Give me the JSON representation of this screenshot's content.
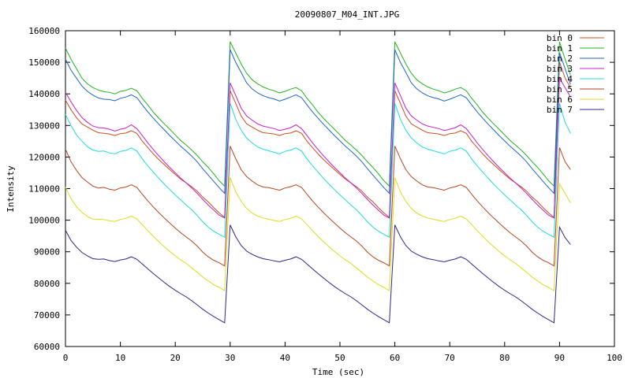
{
  "chart_data": {
    "type": "line",
    "title": "20090807_M04_INT.JPG",
    "xlabel": "Time (sec)",
    "ylabel": "Intensity",
    "xlim": [
      0,
      100
    ],
    "ylim": [
      60000,
      160000
    ],
    "xticks": [
      "0",
      "10",
      "20",
      "30",
      "40",
      "50",
      "60",
      "70",
      "80",
      "90",
      "100"
    ],
    "yticks": [
      "60000",
      "70000",
      "80000",
      "90000",
      "100000",
      "110000",
      "120000",
      "130000",
      "140000",
      "150000",
      "160000"
    ],
    "grid": false,
    "legend": "top-right",
    "time": [
      0,
      1,
      2,
      3,
      4,
      5,
      6,
      7,
      8,
      9,
      10,
      11,
      12,
      13,
      14,
      15,
      16,
      17,
      18,
      19,
      20,
      21,
      22,
      23,
      24,
      25,
      26,
      27,
      28,
      29,
      30,
      31,
      32,
      33,
      34,
      35,
      36,
      37,
      38,
      39,
      40,
      41,
      42,
      43,
      44,
      45,
      46,
      47,
      48,
      49,
      50,
      51,
      52,
      53,
      54,
      55,
      56,
      57,
      58,
      59,
      60,
      61,
      62,
      63,
      64,
      65,
      66,
      67,
      68,
      69,
      70,
      71,
      72,
      73,
      74,
      75,
      76,
      77,
      78,
      79,
      80,
      81,
      82,
      83,
      84,
      85,
      86,
      87,
      88,
      89,
      90,
      91,
      92
    ],
    "series": [
      {
        "name": "bin 0",
        "color": "#c8501e",
        "values": [
          138000,
          135000,
          132500,
          130500,
          129500,
          128500,
          127700,
          127500,
          127300,
          126800,
          127400,
          127600,
          128300,
          127500,
          125000,
          123000,
          121000,
          119200,
          117600,
          116000,
          114500,
          113000,
          111800,
          110600,
          109200,
          107300,
          105800,
          104000,
          102300,
          100900,
          141000,
          137000,
          133000,
          130500,
          129500,
          128500,
          127700,
          127500,
          127300,
          126800,
          127400,
          127600,
          128300,
          127500,
          125000,
          123000,
          121000,
          119200,
          117600,
          116000,
          114500,
          113000,
          111800,
          110600,
          109200,
          107300,
          105800,
          104000,
          102300,
          100900,
          141000,
          137000,
          133000,
          130500,
          129500,
          128500,
          127700,
          127500,
          127300,
          126800,
          127400,
          127600,
          128300,
          127500,
          125000,
          123000,
          121000,
          119200,
          117600,
          116000,
          114500,
          113000,
          111800,
          110600,
          109200,
          107300,
          105800,
          104000,
          102300,
          100900,
          150000,
          145000,
          142000
        ]
      },
      {
        "name": "bin 1",
        "color": "#22b422",
        "values": [
          154500,
          151000,
          148000,
          145000,
          143200,
          142000,
          141200,
          140700,
          140500,
          140000,
          140800,
          141100,
          141800,
          141000,
          138600,
          136500,
          134200,
          132300,
          130500,
          128800,
          127000,
          125200,
          123800,
          122200,
          120500,
          118500,
          116700,
          114700,
          112500,
          110800,
          156500,
          153000,
          149500,
          146500,
          144500,
          143200,
          142200,
          141500,
          141000,
          140300,
          140800,
          141500,
          142000,
          141000,
          138600,
          136500,
          134200,
          132300,
          130500,
          128800,
          127000,
          125200,
          123800,
          122200,
          120500,
          118500,
          116700,
          114700,
          112500,
          110800,
          156500,
          153000,
          149500,
          146500,
          144500,
          143200,
          142200,
          141500,
          141000,
          140300,
          140800,
          141500,
          142000,
          141000,
          138600,
          136500,
          134200,
          132300,
          130500,
          128800,
          127000,
          125200,
          123800,
          122200,
          120500,
          118500,
          116700,
          114700,
          112500,
          110800,
          156500,
          151000,
          146000
        ]
      },
      {
        "name": "bin 2",
        "color": "#1e64c8",
        "values": [
          151000,
          147500,
          145000,
          142500,
          140800,
          139600,
          138700,
          138300,
          138200,
          137800,
          138600,
          139000,
          139700,
          138800,
          136500,
          134300,
          132300,
          130400,
          128600,
          126800,
          125100,
          123400,
          121900,
          120300,
          118500,
          116300,
          114300,
          112300,
          110300,
          108500,
          154000,
          150000,
          146800,
          143500,
          141600,
          140300,
          139400,
          138800,
          138400,
          137700,
          138300,
          139000,
          139700,
          138800,
          136500,
          134300,
          132300,
          130400,
          128600,
          126800,
          125100,
          123400,
          121900,
          120300,
          118500,
          116300,
          114300,
          112300,
          110300,
          108500,
          154000,
          150000,
          146800,
          143500,
          141600,
          140300,
          139400,
          138800,
          138400,
          137700,
          138300,
          139000,
          139700,
          138800,
          136500,
          134300,
          132300,
          130400,
          128600,
          126800,
          125100,
          123400,
          121900,
          120300,
          118500,
          116300,
          114300,
          112300,
          110300,
          108500,
          153000,
          148000,
          143000
        ]
      },
      {
        "name": "bin 3",
        "color": "#c81ec8",
        "values": [
          140500,
          137500,
          134800,
          132500,
          131000,
          129800,
          129300,
          129200,
          128800,
          128200,
          128800,
          129200,
          130200,
          129000,
          126800,
          124500,
          122400,
          120400,
          118500,
          116700,
          115000,
          113300,
          111800,
          110200,
          108500,
          106600,
          104800,
          103200,
          101600,
          100700,
          143500,
          139500,
          135500,
          133000,
          131700,
          130500,
          129800,
          129400,
          129000,
          128400,
          128800,
          129300,
          130200,
          129000,
          126800,
          124500,
          122400,
          120400,
          118500,
          116700,
          115000,
          113300,
          111800,
          110200,
          108500,
          106600,
          104800,
          103200,
          101600,
          100700,
          143500,
          139500,
          135500,
          133000,
          131700,
          130500,
          129800,
          129400,
          129000,
          128400,
          128800,
          129300,
          130200,
          129000,
          126800,
          124500,
          122400,
          120400,
          118500,
          116700,
          115000,
          113300,
          111800,
          110200,
          108500,
          106600,
          104800,
          103200,
          101600,
          100700,
          145000,
          142000,
          139000
        ]
      },
      {
        "name": "bin 4",
        "color": "#1edcdc",
        "values": [
          133500,
          130000,
          127000,
          125000,
          123300,
          122200,
          121800,
          121900,
          121300,
          121000,
          121800,
          122100,
          122900,
          121900,
          119400,
          117200,
          115200,
          113300,
          111400,
          109700,
          108000,
          106400,
          104800,
          103300,
          101500,
          99500,
          97800,
          96500,
          95500,
          94600,
          137000,
          132000,
          128500,
          126000,
          124500,
          123200,
          122500,
          122000,
          121500,
          121000,
          121800,
          122200,
          122900,
          121900,
          119400,
          117200,
          115200,
          113300,
          111400,
          109700,
          108000,
          106400,
          104800,
          103300,
          101500,
          99500,
          97800,
          96500,
          95500,
          94600,
          137000,
          132000,
          128500,
          126000,
          124500,
          123200,
          122500,
          122000,
          121500,
          121000,
          121800,
          122200,
          122900,
          121900,
          119400,
          117200,
          115200,
          113300,
          111400,
          109700,
          108000,
          106400,
          104800,
          103300,
          101500,
          99500,
          97800,
          96500,
          95500,
          94600,
          137000,
          131000,
          127500
        ]
      },
      {
        "name": "bin 5",
        "color": "#b4461e",
        "values": [
          122500,
          118500,
          115800,
          113500,
          112100,
          110800,
          110200,
          110400,
          109800,
          109500,
          110200,
          110500,
          111200,
          110400,
          108200,
          106100,
          104200,
          102400,
          100700,
          99100,
          97500,
          96000,
          94700,
          93400,
          91800,
          89900,
          88400,
          87300,
          86500,
          85500,
          123500,
          119500,
          116000,
          113800,
          112400,
          111200,
          110500,
          110300,
          109900,
          109500,
          110200,
          110600,
          111200,
          110400,
          108200,
          106100,
          104200,
          102400,
          100700,
          99100,
          97500,
          96000,
          94700,
          93400,
          91800,
          89900,
          88400,
          87300,
          86500,
          85500,
          123500,
          119500,
          116000,
          113800,
          112400,
          111200,
          110500,
          110300,
          109900,
          109500,
          110200,
          110600,
          111200,
          110400,
          108200,
          106100,
          104200,
          102400,
          100700,
          99100,
          97500,
          96000,
          94700,
          93400,
          91800,
          89900,
          88400,
          87300,
          86500,
          85500,
          123000,
          118500,
          116000
        ]
      },
      {
        "name": "bin 6",
        "color": "#dcdc1e",
        "values": [
          110500,
          106800,
          104300,
          102500,
          101200,
          100300,
          100300,
          100200,
          99800,
          99600,
          100200,
          100600,
          101300,
          100400,
          98600,
          96700,
          94900,
          93200,
          91600,
          90100,
          88700,
          87400,
          86300,
          84900,
          83500,
          82000,
          80800,
          79600,
          78700,
          77700,
          113500,
          109000,
          106000,
          103700,
          102300,
          101300,
          100700,
          100300,
          99900,
          99600,
          100200,
          100600,
          101300,
          100400,
          98600,
          96700,
          94900,
          93200,
          91600,
          90100,
          88700,
          87400,
          86300,
          84900,
          83500,
          82000,
          80800,
          79600,
          78700,
          77700,
          113500,
          109000,
          106000,
          103700,
          102300,
          101300,
          100700,
          100300,
          99900,
          99600,
          100200,
          100600,
          101300,
          100400,
          98600,
          96700,
          94900,
          93200,
          91600,
          90100,
          88700,
          87400,
          86300,
          84900,
          83500,
          82000,
          80800,
          79600,
          78700,
          77700,
          111500,
          108500,
          105500
        ]
      },
      {
        "name": "bin 7",
        "color": "#28288c",
        "values": [
          96800,
          93600,
          91500,
          89800,
          88700,
          87800,
          87600,
          87700,
          87200,
          86900,
          87400,
          87700,
          88400,
          87600,
          86100,
          84600,
          83100,
          81700,
          80300,
          79000,
          77800,
          76700,
          75700,
          74500,
          73200,
          71800,
          70600,
          69500,
          68500,
          67500,
          98500,
          94800,
          92000,
          90200,
          89200,
          88400,
          87800,
          87500,
          87100,
          86800,
          87300,
          87700,
          88400,
          87600,
          86100,
          84600,
          83100,
          81700,
          80300,
          79000,
          77800,
          76700,
          75700,
          74500,
          73200,
          71800,
          70600,
          69500,
          68500,
          67500,
          98500,
          94800,
          92000,
          90200,
          89200,
          88400,
          87800,
          87500,
          87100,
          86800,
          87300,
          87700,
          88400,
          87600,
          86100,
          84600,
          83100,
          81700,
          80300,
          79000,
          77800,
          76700,
          75700,
          74500,
          73200,
          71800,
          70600,
          69500,
          68500,
          67500,
          97800,
          94500,
          92300
        ]
      }
    ]
  }
}
